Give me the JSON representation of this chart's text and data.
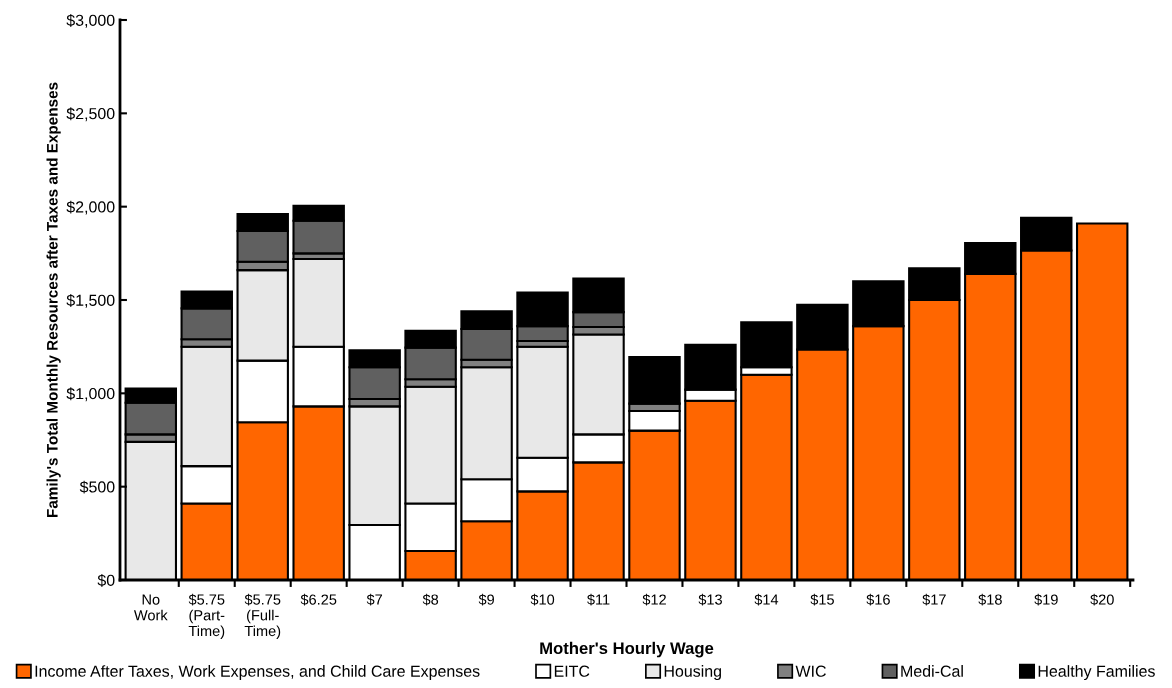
{
  "chart_data": {
    "type": "bar",
    "stacked": true,
    "xlabel": "Mother's Hourly Wage",
    "ylabel": "Family's Total Monthly Resources after Taxes and Expenses",
    "categories": [
      "No\nWork",
      "$5.75\n(Part-\nTime)",
      "$5.75\n(Full-\nTime)",
      "$6.25",
      "$7",
      "$8",
      "$9",
      "$10",
      "$11",
      "$12",
      "$13",
      "$14",
      "$15",
      "$16",
      "$17",
      "$18",
      "$19",
      "$20"
    ],
    "series": [
      {
        "name": "Income After Taxes, Work Expenses, and Child Care Expenses",
        "color": "#ff6600",
        "values": [
          null,
          410,
          845,
          930,
          null,
          155,
          315,
          475,
          630,
          800,
          960,
          1100,
          1235,
          1360,
          1500,
          1640,
          1765,
          1910
        ]
      },
      {
        "name": "EITC",
        "color": "#ffffff",
        "values": [
          null,
          200,
          330,
          320,
          295,
          255,
          225,
          180,
          150,
          105,
          60,
          40,
          null,
          null,
          null,
          null,
          null,
          null
        ]
      },
      {
        "name": "Housing",
        "color": "#e8e8e8",
        "values": [
          740,
          640,
          485,
          470,
          635,
          625,
          600,
          595,
          535,
          null,
          null,
          null,
          null,
          null,
          null,
          null,
          null,
          null
        ]
      },
      {
        "name": "WIC",
        "color": "#808080",
        "values": [
          40,
          40,
          45,
          30,
          40,
          40,
          40,
          30,
          40,
          40,
          null,
          null,
          null,
          null,
          null,
          null,
          null,
          null
        ]
      },
      {
        "name": "Medi-Cal",
        "color": "#606060",
        "values": [
          170,
          165,
          165,
          175,
          170,
          170,
          165,
          80,
          80,
          null,
          null,
          null,
          null,
          null,
          null,
          null,
          null,
          null
        ]
      },
      {
        "name": "Healthy Families",
        "color": "#000000",
        "values": [
          75,
          90,
          90,
          80,
          90,
          90,
          95,
          180,
          180,
          250,
          240,
          240,
          240,
          240,
          170,
          165,
          175,
          null
        ]
      }
    ],
    "ylim": [
      0,
      3000
    ],
    "yticks": [
      {
        "value": 0,
        "label": "$0"
      },
      {
        "value": 500,
        "label": "$500"
      },
      {
        "value": 1000,
        "label": "$1,000"
      },
      {
        "value": 1500,
        "label": "$1,500"
      },
      {
        "value": 2000,
        "label": "$2,000"
      },
      {
        "value": 2500,
        "label": "$2,500"
      },
      {
        "value": 3000,
        "label": "$3,000"
      }
    ],
    "grid": false,
    "legend": "bottom"
  }
}
